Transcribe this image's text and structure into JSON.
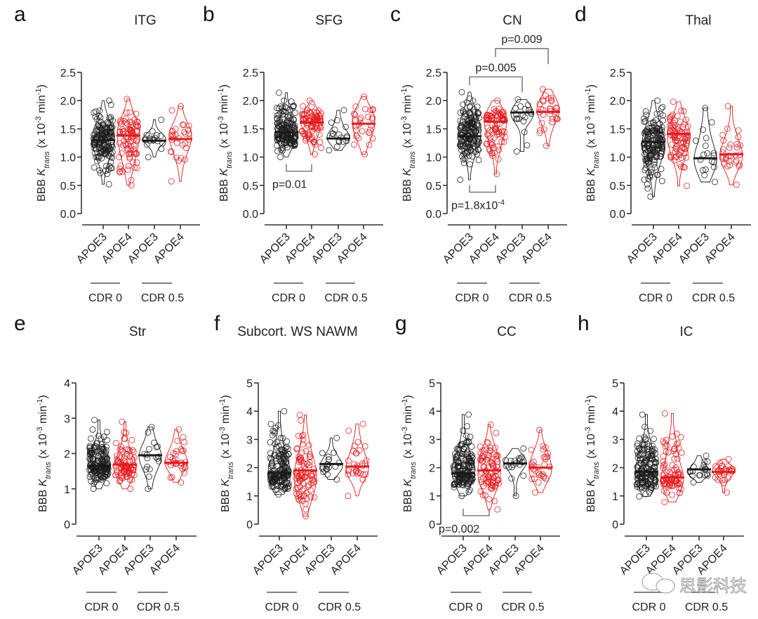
{
  "figure": {
    "watermark": "思影科技",
    "colors": {
      "apoe3": "#1a1a1a",
      "apoe4": "#e8191c",
      "axis": "#333333"
    },
    "ylabel_prefix": "BBB ",
    "ylabel_k": "K",
    "ylabel_sub": "trans",
    "ylabel_unit_a": " (x 10",
    "ylabel_unit_exp": "-3",
    "ylabel_unit_b": " min",
    "ylabel_unit_exp2": "-1",
    "ylabel_unit_c": ")",
    "categories": [
      "APOE3",
      "APOE4",
      "APOE3",
      "APOE4"
    ],
    "groups": [
      "CDR 0",
      "CDR 0.5"
    ]
  },
  "chart_data": [
    {
      "type": "violin",
      "letter": "a",
      "title": "ITG",
      "ylim": [
        0,
        2.5
      ],
      "yticks": [
        "0.0",
        "0.5",
        "1.0",
        "1.5",
        "2.0",
        "2.5"
      ],
      "ytick_values": [
        0,
        0.5,
        1.0,
        1.5,
        2.0,
        2.5
      ],
      "series": [
        {
          "name": "CDR 0 APOE3",
          "median": 1.3,
          "min": 0.52,
          "max": 2.0,
          "n": 160
        },
        {
          "name": "CDR 0 APOE4",
          "median": 1.38,
          "min": 0.5,
          "max": 2.03,
          "n": 85
        },
        {
          "name": "CDR 0.5 APOE3",
          "median": 1.29,
          "min": 1.0,
          "max": 1.66,
          "n": 18
        },
        {
          "name": "CDR 0.5 APOE4",
          "median": 1.32,
          "min": 0.57,
          "max": 1.9,
          "n": 30
        }
      ],
      "annotations": []
    },
    {
      "type": "violin",
      "letter": "b",
      "title": "SFG",
      "ylim": [
        0,
        2.5
      ],
      "yticks": [
        "0.0",
        "0.5",
        "1.0",
        "1.5",
        "2.0",
        "2.5"
      ],
      "ytick_values": [
        0,
        0.5,
        1.0,
        1.5,
        2.0,
        2.5
      ],
      "series": [
        {
          "name": "CDR 0 APOE3",
          "median": 1.44,
          "min": 1.0,
          "max": 2.14,
          "n": 160
        },
        {
          "name": "CDR 0 APOE4",
          "median": 1.61,
          "min": 1.05,
          "max": 2.0,
          "n": 85
        },
        {
          "name": "CDR 0.5 APOE3",
          "median": 1.33,
          "min": 1.12,
          "max": 1.83,
          "n": 18
        },
        {
          "name": "CDR 0.5 APOE4",
          "median": 1.59,
          "min": 1.05,
          "max": 2.07,
          "n": 30
        }
      ],
      "annotations": [
        {
          "label": "p=0.01",
          "from": 0,
          "to": 1,
          "position": "below",
          "y": 0.75
        }
      ]
    },
    {
      "type": "violin",
      "letter": "c",
      "title": "CN",
      "ylim": [
        0,
        2.5
      ],
      "yticks": [
        "0.0",
        "0.5",
        "1.0",
        "1.5",
        "2.0",
        "2.5"
      ],
      "ytick_values": [
        0,
        0.5,
        1.0,
        1.5,
        2.0,
        2.5
      ],
      "series": [
        {
          "name": "CDR 0 APOE3",
          "median": 1.37,
          "min": 0.6,
          "max": 2.15,
          "n": 160
        },
        {
          "name": "CDR 0 APOE4",
          "median": 1.63,
          "min": 0.7,
          "max": 2.0,
          "n": 85
        },
        {
          "name": "CDR 0.5 APOE3",
          "median": 1.79,
          "min": 1.1,
          "max": 2.02,
          "n": 18
        },
        {
          "name": "CDR 0.5 APOE4",
          "median": 1.8,
          "min": 1.2,
          "max": 2.2,
          "n": 30
        }
      ],
      "annotations": [
        {
          "label": "p=1.8x10",
          "label_exp": "-4",
          "from": 0,
          "to": 1,
          "position": "below",
          "y": 0.38
        },
        {
          "label": "p=0.005",
          "from": 0,
          "to": 2,
          "position": "above",
          "y": 2.42
        },
        {
          "label": "p=0.009",
          "from": 1,
          "to": 3,
          "position": "above",
          "y": 2.92
        }
      ]
    },
    {
      "type": "violin",
      "letter": "d",
      "title": "Thal",
      "ylim": [
        0,
        2.5
      ],
      "yticks": [
        "0.0",
        "0.5",
        "1.0",
        "1.5",
        "2.0",
        "2.5"
      ],
      "ytick_values": [
        0,
        0.5,
        1.0,
        1.5,
        2.0,
        2.5
      ],
      "series": [
        {
          "name": "CDR 0 APOE3",
          "median": 1.27,
          "min": 0.3,
          "max": 2.0,
          "n": 160
        },
        {
          "name": "CDR 0 APOE4",
          "median": 1.41,
          "min": 0.49,
          "max": 1.98,
          "n": 85
        },
        {
          "name": "CDR 0.5 APOE3",
          "median": 0.98,
          "min": 0.56,
          "max": 1.87,
          "n": 18
        },
        {
          "name": "CDR 0.5 APOE4",
          "median": 1.05,
          "min": 0.51,
          "max": 1.9,
          "n": 30
        }
      ],
      "annotations": []
    },
    {
      "type": "violin",
      "letter": "e",
      "title": "Str",
      "ylim": [
        0,
        4
      ],
      "yticks": [
        "0",
        "1",
        "2",
        "3",
        "4"
      ],
      "ytick_values": [
        0,
        1,
        2,
        3,
        4
      ],
      "series": [
        {
          "name": "CDR 0 APOE3",
          "median": 1.65,
          "min": 1.0,
          "max": 2.95,
          "n": 160
        },
        {
          "name": "CDR 0 APOE4",
          "median": 1.69,
          "min": 1.0,
          "max": 2.9,
          "n": 85
        },
        {
          "name": "CDR 0.5 APOE3",
          "median": 1.95,
          "min": 1.0,
          "max": 2.75,
          "n": 18
        },
        {
          "name": "CDR 0.5 APOE4",
          "median": 1.74,
          "min": 1.18,
          "max": 2.68,
          "n": 30
        }
      ],
      "annotations": []
    },
    {
      "type": "violin",
      "letter": "f",
      "title": "Subcort. WS NAWM",
      "ylim": [
        0,
        5
      ],
      "yticks": [
        "0",
        "1",
        "2",
        "3",
        "4",
        "5"
      ],
      "ytick_values": [
        0,
        1,
        2,
        3,
        4,
        5
      ],
      "series": [
        {
          "name": "CDR 0 APOE3",
          "median": 1.81,
          "min": 1.05,
          "max": 4.0,
          "n": 160
        },
        {
          "name": "CDR 0 APOE4",
          "median": 1.9,
          "min": 0.28,
          "max": 3.87,
          "n": 85
        },
        {
          "name": "CDR 0.5 APOE3",
          "median": 2.13,
          "min": 1.58,
          "max": 3.05,
          "n": 18
        },
        {
          "name": "CDR 0.5 APOE4",
          "median": 2.04,
          "min": 1.0,
          "max": 3.55,
          "n": 30
        }
      ],
      "annotations": []
    },
    {
      "type": "violin",
      "letter": "g",
      "title": "CC",
      "ylim": [
        0,
        5
      ],
      "yticks": [
        "0",
        "1",
        "2",
        "3",
        "4",
        "5"
      ],
      "ytick_values": [
        0,
        1,
        2,
        3,
        4,
        5
      ],
      "series": [
        {
          "name": "CDR 0 APOE3",
          "median": 1.8,
          "min": 1.0,
          "max": 3.88,
          "n": 160
        },
        {
          "name": "CDR 0 APOE4",
          "median": 1.9,
          "min": 0.52,
          "max": 3.52,
          "n": 85
        },
        {
          "name": "CDR 0.5 APOE3",
          "median": 2.15,
          "min": 1.0,
          "max": 2.68,
          "n": 18
        },
        {
          "name": "CDR 0.5 APOE4",
          "median": 2.0,
          "min": 1.12,
          "max": 3.33,
          "n": 30
        }
      ],
      "annotations": [
        {
          "label": "p=0.002",
          "from": 0,
          "to": 1,
          "position": "below",
          "y": 0.3
        }
      ]
    },
    {
      "type": "violin",
      "letter": "h",
      "title": "IC",
      "ylim": [
        0,
        5
      ],
      "yticks": [
        "0",
        "1",
        "2",
        "3",
        "4",
        "5"
      ],
      "ytick_values": [
        0,
        1,
        2,
        3,
        4,
        5
      ],
      "series": [
        {
          "name": "CDR 0 APOE3",
          "median": 1.85,
          "min": 0.98,
          "max": 3.88,
          "n": 160
        },
        {
          "name": "CDR 0 APOE4",
          "median": 1.65,
          "min": 0.78,
          "max": 3.92,
          "n": 85
        },
        {
          "name": "CDR 0.5 APOE3",
          "median": 1.94,
          "min": 1.48,
          "max": 2.42,
          "n": 18
        },
        {
          "name": "CDR 0.5 APOE4",
          "median": 1.85,
          "min": 1.12,
          "max": 2.3,
          "n": 30
        }
      ],
      "annotations": []
    }
  ]
}
